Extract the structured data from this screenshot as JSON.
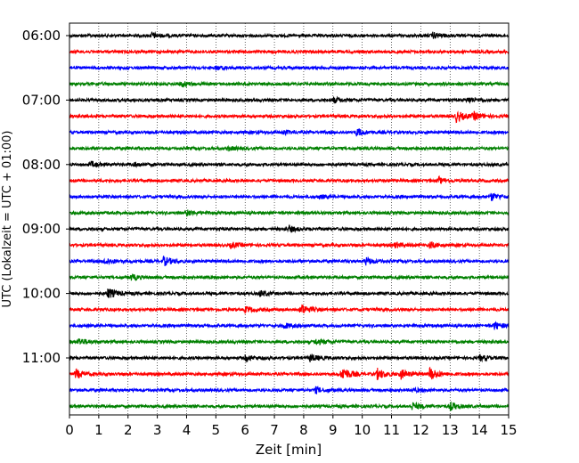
{
  "chart_data": {
    "type": "line",
    "title": "",
    "xlabel": "Zeit  [min]",
    "ylabel": "UTC (Lokalzeit = UTC + 01:00)",
    "xlim": [
      0,
      15
    ],
    "x_ticks": [
      "0",
      "1",
      "2",
      "3",
      "4",
      "5",
      "6",
      "7",
      "8",
      "9",
      "10",
      "11",
      "12",
      "13",
      "14",
      "15"
    ],
    "y_ticks": [
      "06:00",
      "07:00",
      "08:00",
      "09:00",
      "10:00",
      "11:00"
    ],
    "trace_interval_minutes": 15,
    "grid": "vertical-dotted",
    "series_colors": [
      "#000000",
      "#ff0000",
      "#0000ff",
      "#008000"
    ],
    "traces": [
      {
        "start": "06:00",
        "color": "#000000",
        "events": [
          {
            "t": 2.8,
            "amp": 3
          },
          {
            "t": 12.4,
            "amp": 3
          }
        ]
      },
      {
        "start": "06:15",
        "color": "#ff0000",
        "events": []
      },
      {
        "start": "06:30",
        "color": "#0000ff",
        "events": [
          {
            "t": 5.0,
            "amp": 2
          }
        ]
      },
      {
        "start": "06:45",
        "color": "#008000",
        "events": [
          {
            "t": 3.8,
            "amp": 3
          }
        ]
      },
      {
        "start": "07:00",
        "color": "#000000",
        "events": [
          {
            "t": 9.0,
            "amp": 3
          },
          {
            "t": 13.6,
            "amp": 3
          }
        ]
      },
      {
        "start": "07:15",
        "color": "#ff0000",
        "events": [
          {
            "t": 13.2,
            "amp": 6
          },
          {
            "t": 13.8,
            "amp": 4
          }
        ]
      },
      {
        "start": "07:30",
        "color": "#0000ff",
        "events": [
          {
            "t": 9.8,
            "amp": 4
          },
          {
            "t": 7.3,
            "amp": 2
          }
        ]
      },
      {
        "start": "07:45",
        "color": "#008000",
        "events": [
          {
            "t": 5.4,
            "amp": 2
          }
        ]
      },
      {
        "start": "08:00",
        "color": "#000000",
        "events": [
          {
            "t": 0.7,
            "amp": 3
          },
          {
            "t": 2.2,
            "amp": 2
          }
        ]
      },
      {
        "start": "08:15",
        "color": "#ff0000",
        "events": [
          {
            "t": 12.6,
            "amp": 3
          }
        ]
      },
      {
        "start": "08:30",
        "color": "#0000ff",
        "events": [
          {
            "t": 14.4,
            "amp": 4
          },
          {
            "t": 8.5,
            "amp": 2
          }
        ]
      },
      {
        "start": "08:45",
        "color": "#008000",
        "events": [
          {
            "t": 4.0,
            "amp": 3
          }
        ]
      },
      {
        "start": "09:00",
        "color": "#000000",
        "events": [
          {
            "t": 7.5,
            "amp": 3
          }
        ]
      },
      {
        "start": "09:15",
        "color": "#ff0000",
        "events": [
          {
            "t": 5.5,
            "amp": 3
          },
          {
            "t": 11.1,
            "amp": 3
          },
          {
            "t": 12.3,
            "amp": 3
          }
        ]
      },
      {
        "start": "09:30",
        "color": "#0000ff",
        "events": [
          {
            "t": 1.2,
            "amp": 4
          },
          {
            "t": 3.2,
            "amp": 5
          },
          {
            "t": 10.1,
            "amp": 4
          }
        ]
      },
      {
        "start": "09:45",
        "color": "#008000",
        "events": [
          {
            "t": 2.1,
            "amp": 3
          }
        ]
      },
      {
        "start": "10:00",
        "color": "#000000",
        "events": [
          {
            "t": 1.3,
            "amp": 6
          },
          {
            "t": 6.5,
            "amp": 3
          }
        ]
      },
      {
        "start": "10:15",
        "color": "#ff0000",
        "events": [
          {
            "t": 7.9,
            "amp": 6
          },
          {
            "t": 6.0,
            "amp": 3
          }
        ]
      },
      {
        "start": "10:30",
        "color": "#0000ff",
        "events": [
          {
            "t": 14.5,
            "amp": 4
          },
          {
            "t": 7.3,
            "amp": 3
          }
        ]
      },
      {
        "start": "10:45",
        "color": "#008000",
        "events": [
          {
            "t": 0.3,
            "amp": 4
          },
          {
            "t": 8.4,
            "amp": 3
          }
        ]
      },
      {
        "start": "11:00",
        "color": "#000000",
        "events": [
          {
            "t": 6.0,
            "amp": 3
          },
          {
            "t": 8.2,
            "amp": 4
          },
          {
            "t": 14.0,
            "amp": 3
          }
        ]
      },
      {
        "start": "11:15",
        "color": "#ff0000",
        "events": [
          {
            "t": 0.2,
            "amp": 5
          },
          {
            "t": 9.3,
            "amp": 8
          },
          {
            "t": 10.5,
            "amp": 6
          },
          {
            "t": 11.3,
            "amp": 5
          },
          {
            "t": 12.3,
            "amp": 7
          }
        ]
      },
      {
        "start": "11:30",
        "color": "#0000ff",
        "events": [
          {
            "t": 8.4,
            "amp": 3
          },
          {
            "t": 11.7,
            "amp": 2
          }
        ]
      },
      {
        "start": "11:45",
        "color": "#008000",
        "events": [
          {
            "t": 11.7,
            "amp": 4
          },
          {
            "t": 13.0,
            "amp": 4
          }
        ]
      }
    ]
  }
}
